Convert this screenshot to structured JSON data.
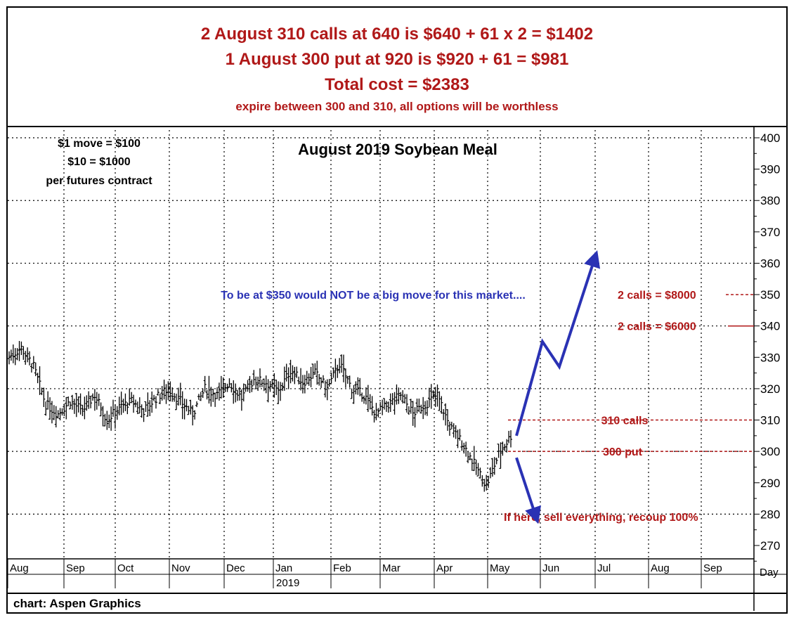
{
  "header": {
    "line1": "2 August 310 calls at 640 is $640 + 61 x 2 = $1402",
    "line2": "1 August 300 put at 920 is $920 + 61 = $981",
    "line3": "Total cost = $2383",
    "line4": "expire between 300 and 310, all options will be worthless"
  },
  "footer": {
    "credit": "chart: Aspen Graphics"
  },
  "colors": {
    "accent": "#b01818",
    "arrow": "#2a32b4",
    "bars": "#000000"
  },
  "chart_data": {
    "type": "bar",
    "title": "August 2019 Soybean Meal",
    "ylim": [
      262,
      403
    ],
    "yticks": [
      270,
      280,
      290,
      300,
      310,
      320,
      330,
      340,
      350,
      360,
      370,
      380,
      390,
      400
    ],
    "gridlines": [
      280,
      300,
      320,
      340,
      360,
      380,
      400
    ],
    "x_axis_unit": "Day",
    "x_months": [
      "Aug",
      "Sep",
      "Oct",
      "Nov",
      "Dec",
      "Jan",
      "Feb",
      "Mar",
      "Apr",
      "May",
      "Jun",
      "Jul",
      "Aug",
      "Sep"
    ],
    "year_label": "2019",
    "grid": true,
    "price_series": {
      "name": "Daily price",
      "start": "Aug",
      "approx_close": [
        330,
        333,
        327,
        315,
        312,
        316,
        313,
        318,
        310,
        314,
        316,
        313,
        317,
        320,
        316,
        312,
        320,
        318,
        322,
        317,
        323,
        322,
        319,
        326,
        322,
        325,
        320,
        328,
        320,
        318,
        312,
        315,
        318,
        312,
        315,
        318,
        308,
        303,
        296,
        289,
        299,
        305
      ]
    },
    "projection_up": {
      "name": "bull path",
      "points": [
        [
          "May",
          305
        ],
        [
          "Jun",
          335
        ],
        [
          "Jun",
          327
        ],
        [
          "Jul",
          362
        ]
      ]
    },
    "projection_down": {
      "name": "bear path",
      "points": [
        [
          "May",
          298
        ],
        [
          "Jun",
          278
        ]
      ]
    },
    "levels": [
      {
        "label": "310 calls",
        "value": 310
      },
      {
        "label": "300 put",
        "value": 300
      },
      {
        "label": "2 calls = $6000",
        "value": 340
      },
      {
        "label": "2 calls = $8000",
        "value": 350
      }
    ],
    "annotations": {
      "contract_note": [
        "$1 move = $100",
        "$10 = $1000",
        "per futures contract"
      ],
      "big_move": "To be at $350 would NOT be a big move for this market....",
      "sell_note": "If here, sell everything, recoup 100%"
    }
  }
}
